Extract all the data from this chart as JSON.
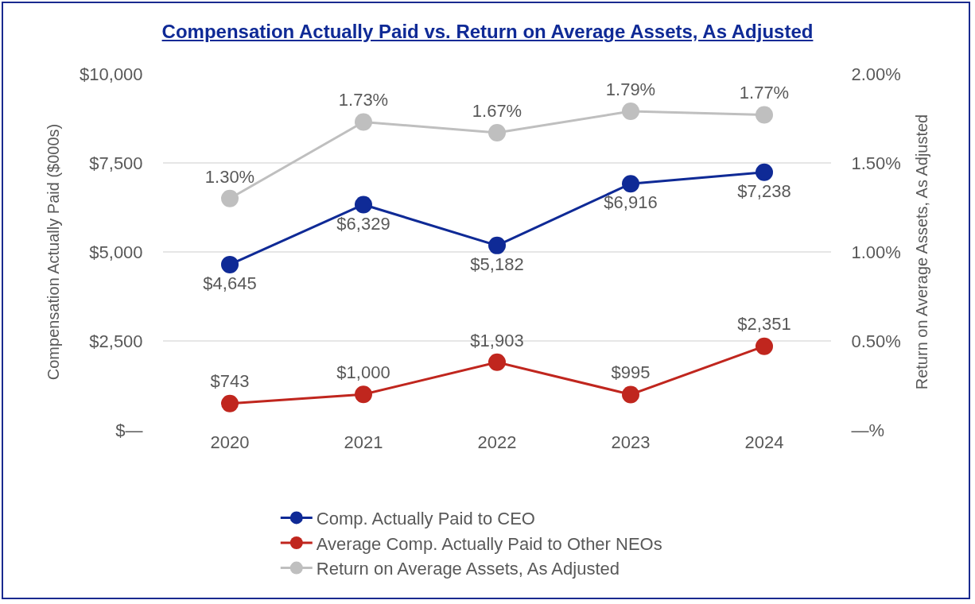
{
  "chart_data": {
    "type": "line",
    "title": "Compensation Actually Paid vs. Return on Average Assets, As Adjusted",
    "ylabel": "Compensation Actually Paid ($000s)",
    "y2label": "Return on Average Assets, As Adjusted",
    "categories": [
      "2020",
      "2021",
      "2022",
      "2023",
      "2024"
    ],
    "series": [
      {
        "name": "Comp. Actually Paid to CEO",
        "color": "#0f2a96",
        "values": [
          4645,
          6329,
          5182,
          6916,
          7238
        ],
        "value_labels": [
          "$4,645",
          "$6,329",
          "$5,182",
          "$6,916",
          "$7,238"
        ]
      },
      {
        "name": "Average Comp. Actually Paid to Other NEOs",
        "color": "#c0261e",
        "values": [
          743,
          1000,
          1903,
          995,
          2351
        ],
        "value_labels": [
          "$743",
          "$1,000",
          "$1,903",
          "$995",
          "$2,351"
        ]
      },
      {
        "name": "Return on Average Assets, As Adjusted",
        "color": "#bfbfbf",
        "axis": "y2",
        "values": [
          1.3,
          1.73,
          1.67,
          1.79,
          1.77
        ],
        "value_labels": [
          "1.30%",
          "1.73%",
          "1.67%",
          "1.79%",
          "1.77%"
        ]
      }
    ],
    "ylim": [
      0,
      10000
    ],
    "yticks": [
      {
        "value": 0,
        "label": "$—"
      },
      {
        "value": 2500,
        "label": "$2,500"
      },
      {
        "value": 5000,
        "label": "$5,000"
      },
      {
        "value": 7500,
        "label": "$7,500"
      },
      {
        "value": 10000,
        "label": "$10,000"
      }
    ],
    "y2lim": [
      0,
      2
    ],
    "y2ticks": [
      {
        "value": 0,
        "label": "—%"
      },
      {
        "value": 0.5,
        "label": "0.50%"
      },
      {
        "value": 1,
        "label": "1.00%"
      },
      {
        "value": 1.5,
        "label": "1.50%"
      },
      {
        "value": 2,
        "label": "2.00%"
      }
    ],
    "grid": "y",
    "legend": "bottom",
    "marker": "circle",
    "line_style": "solid"
  }
}
